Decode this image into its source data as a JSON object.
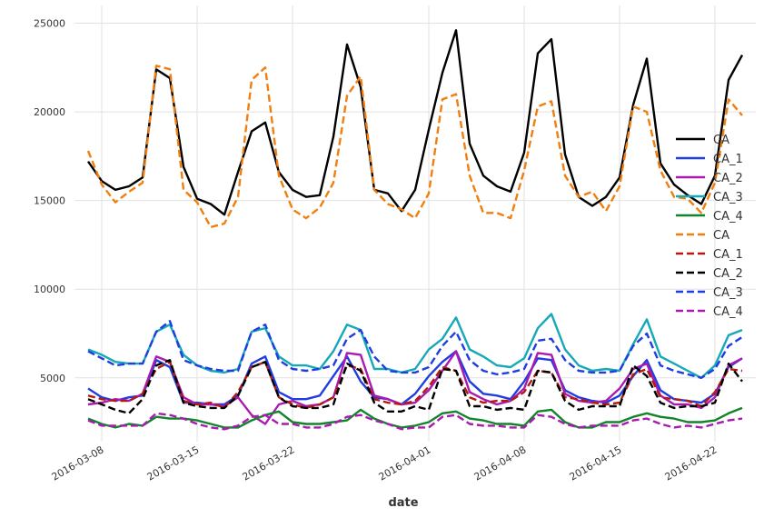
{
  "chart_data": {
    "type": "line",
    "xlabel": "date",
    "ylabel": "",
    "title": "",
    "grid": true,
    "legend_placement": "right",
    "ylim": [
      1400,
      26000
    ],
    "xlim": [
      "2016-03-06",
      "2016-04-25"
    ],
    "x_ticks": [
      "2016-03-08",
      "2016-03-15",
      "2016-03-22",
      "2016-04-01",
      "2016-04-08",
      "2016-04-15",
      "2016-04-22"
    ],
    "y_ticks": [
      5000,
      10000,
      15000,
      20000,
      25000
    ],
    "x": [
      "2016-03-07",
      "2016-03-08",
      "2016-03-09",
      "2016-03-10",
      "2016-03-11",
      "2016-03-12",
      "2016-03-13",
      "2016-03-14",
      "2016-03-15",
      "2016-03-16",
      "2016-03-17",
      "2016-03-18",
      "2016-03-19",
      "2016-03-20",
      "2016-03-21",
      "2016-03-22",
      "2016-03-23",
      "2016-03-24",
      "2016-03-25",
      "2016-03-26",
      "2016-03-27",
      "2016-03-28",
      "2016-03-29",
      "2016-03-30",
      "2016-03-31",
      "2016-04-01",
      "2016-04-02",
      "2016-04-03",
      "2016-04-04",
      "2016-04-05",
      "2016-04-06",
      "2016-04-07",
      "2016-04-08",
      "2016-04-09",
      "2016-04-10",
      "2016-04-11",
      "2016-04-12",
      "2016-04-13",
      "2016-04-14",
      "2016-04-15",
      "2016-04-16",
      "2016-04-17",
      "2016-04-18",
      "2016-04-19",
      "2016-04-20",
      "2016-04-21",
      "2016-04-22",
      "2016-04-23",
      "2016-04-24"
    ],
    "series": [
      {
        "name": "CA",
        "color": "#000000",
        "dash": false,
        "values": [
          17200,
          16100,
          15600,
          15800,
          16300,
          22400,
          21900,
          16900,
          15100,
          14800,
          14200,
          16600,
          18900,
          19400,
          16600,
          15600,
          15200,
          15300,
          18600,
          23800,
          21400,
          15600,
          15400,
          14400,
          15600,
          19000,
          22200,
          24600,
          18200,
          16400,
          15800,
          15500,
          17700,
          23300,
          24100,
          17600,
          15200,
          14700,
          15200,
          16300,
          20400,
          23000,
          17100,
          15900,
          15300,
          14800,
          16400,
          21800,
          23200
        ]
      },
      {
        "name": "CA_1",
        "color": "#1f3ee0",
        "dash": false,
        "values": [
          4400,
          3900,
          3700,
          3900,
          4000,
          6000,
          5600,
          3600,
          3600,
          3500,
          3500,
          4000,
          5800,
          6200,
          4200,
          3800,
          3800,
          4000,
          5100,
          6200,
          4800,
          3900,
          3800,
          3500,
          4100,
          5100,
          5900,
          6500,
          4800,
          4100,
          4000,
          3800,
          4800,
          6100,
          6000,
          4300,
          3900,
          3700,
          3600,
          4000,
          5100,
          6000,
          4300,
          3800,
          3700,
          3600,
          4100,
          5600,
          6100
        ]
      },
      {
        "name": "CA_2",
        "color": "#a91ab1",
        "dash": false,
        "values": [
          3500,
          3600,
          3800,
          3700,
          4100,
          6200,
          5900,
          3900,
          3500,
          3500,
          3400,
          3900,
          2900,
          2400,
          3500,
          3700,
          3400,
          3500,
          3900,
          6400,
          6300,
          4000,
          3800,
          3500,
          3600,
          4300,
          5400,
          6500,
          4200,
          3800,
          3500,
          3700,
          4400,
          6400,
          6300,
          4100,
          3700,
          3600,
          3700,
          4400,
          5500,
          5800,
          4000,
          3500,
          3500,
          3300,
          3900,
          5700,
          6100
        ]
      },
      {
        "name": "CA_3",
        "color": "#16a8b8",
        "dash": false,
        "values": [
          6600,
          6300,
          5900,
          5800,
          5800,
          7600,
          8000,
          6300,
          5700,
          5400,
          5300,
          5500,
          7600,
          7800,
          6200,
          5700,
          5700,
          5500,
          6500,
          8000,
          7700,
          5500,
          5500,
          5300,
          5500,
          6600,
          7200,
          8400,
          6600,
          6200,
          5700,
          5600,
          6100,
          7800,
          8600,
          6600,
          5700,
          5400,
          5500,
          5400,
          6900,
          8300,
          6200,
          5800,
          5400,
          5000,
          5700,
          7400,
          7700
        ]
      },
      {
        "name": "CA_4",
        "color": "#12842a",
        "dash": false,
        "values": [
          2700,
          2400,
          2200,
          2400,
          2300,
          2800,
          2700,
          2700,
          2600,
          2400,
          2200,
          2200,
          2600,
          2900,
          3100,
          2500,
          2400,
          2400,
          2500,
          2600,
          3200,
          2700,
          2400,
          2200,
          2300,
          2500,
          3000,
          3100,
          2700,
          2600,
          2400,
          2400,
          2300,
          3100,
          3200,
          2500,
          2200,
          2200,
          2500,
          2500,
          2800,
          3000,
          2800,
          2700,
          2500,
          2500,
          2600,
          3000,
          3300
        ]
      },
      {
        "name": "CA",
        "color": "#f07f0f",
        "dash": true,
        "values": [
          17800,
          15900,
          14900,
          15500,
          16000,
          22600,
          22400,
          15600,
          14900,
          13500,
          13700,
          15200,
          21800,
          22500,
          16400,
          14500,
          14000,
          14600,
          16000,
          20900,
          22000,
          15600,
          14800,
          14500,
          14000,
          15400,
          20700,
          21000,
          16400,
          14300,
          14300,
          14000,
          16700,
          20300,
          20600,
          16400,
          15200,
          15500,
          14400,
          15800,
          20300,
          20000,
          16700,
          15200,
          15100,
          14300,
          16000,
          20700,
          19800
        ]
      },
      {
        "name": "CA_1",
        "color": "#b41a10",
        "dash": true,
        "values": [
          4000,
          3800,
          3700,
          3700,
          4100,
          5500,
          5900,
          3700,
          3500,
          3600,
          3300,
          4200,
          5600,
          5900,
          3900,
          3500,
          3300,
          3500,
          3900,
          5700,
          5500,
          3800,
          3600,
          3500,
          3700,
          4500,
          5600,
          5400,
          3900,
          3600,
          3700,
          3700,
          4200,
          5400,
          5300,
          3900,
          3800,
          3600,
          3500,
          3600,
          5200,
          5500,
          3900,
          3800,
          3700,
          3400,
          4200,
          5500,
          5400
        ]
      },
      {
        "name": "CA_2",
        "color": "#000000",
        "dash": true,
        "values": [
          3800,
          3500,
          3200,
          3000,
          3800,
          5700,
          6000,
          3600,
          3400,
          3300,
          3300,
          4000,
          5600,
          5900,
          3900,
          3400,
          3300,
          3300,
          3500,
          5800,
          5400,
          3600,
          3100,
          3100,
          3400,
          3200,
          5500,
          5400,
          3400,
          3400,
          3200,
          3300,
          3200,
          5400,
          5300,
          3700,
          3200,
          3400,
          3400,
          3400,
          5700,
          5100,
          3600,
          3300,
          3400,
          3400,
          3600,
          5800,
          4800
        ]
      },
      {
        "name": "CA_3",
        "color": "#1f3ee0",
        "dash": true,
        "values": [
          6500,
          6100,
          5700,
          5800,
          5800,
          7600,
          8200,
          6000,
          5700,
          5500,
          5400,
          5400,
          7600,
          8000,
          6000,
          5500,
          5400,
          5500,
          5700,
          7200,
          7700,
          6200,
          5400,
          5300,
          5300,
          5600,
          6800,
          7600,
          6000,
          5400,
          5200,
          5300,
          5500,
          7100,
          7200,
          6000,
          5400,
          5300,
          5300,
          5400,
          6800,
          7500,
          5700,
          5400,
          5200,
          5000,
          5500,
          6800,
          7300
        ]
      },
      {
        "name": "CA_4",
        "color": "#a91ab1",
        "dash": true,
        "values": [
          2600,
          2300,
          2300,
          2300,
          2300,
          3000,
          2900,
          2700,
          2400,
          2200,
          2100,
          2300,
          2800,
          2900,
          2400,
          2400,
          2200,
          2200,
          2400,
          2800,
          2900,
          2600,
          2400,
          2100,
          2200,
          2200,
          2800,
          2900,
          2400,
          2300,
          2300,
          2200,
          2200,
          2900,
          2800,
          2400,
          2200,
          2300,
          2300,
          2300,
          2600,
          2700,
          2400,
          2200,
          2300,
          2200,
          2400,
          2600,
          2700
        ]
      }
    ]
  }
}
